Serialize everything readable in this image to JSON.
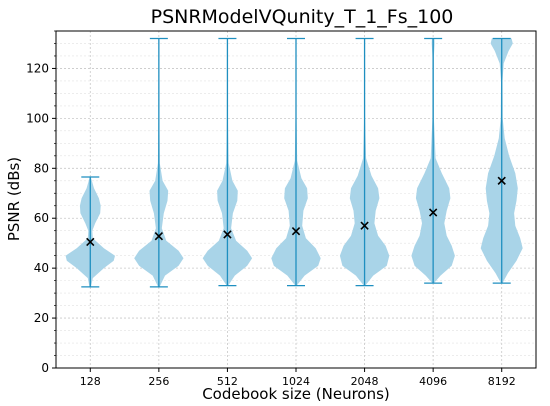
{
  "chart_data": {
    "type": "violin",
    "title": "PSNRModelVQunity_T_1_Fs_100",
    "xlabel": "Codebook size (Neurons)",
    "ylabel": "PSNR (dBs)",
    "ylim": [
      0,
      135
    ],
    "yticks": [
      0,
      20,
      40,
      60,
      80,
      100,
      120
    ],
    "categories": [
      "128",
      "256",
      "512",
      "1024",
      "2048",
      "4096",
      "8192"
    ],
    "grid": true,
    "colors": {
      "body": "#a9d4e8",
      "lines": "#1f8fc0",
      "mean_marker": "#000000"
    },
    "series": [
      {
        "category": "128",
        "min": 32.5,
        "max": 76.5,
        "mean": 50.5,
        "density": [
          [
            32.5,
            0.03
          ],
          [
            36,
            0.1
          ],
          [
            40,
            0.55
          ],
          [
            43,
            0.95
          ],
          [
            45,
            1.0
          ],
          [
            48,
            0.55
          ],
          [
            52,
            0.1
          ],
          [
            55,
            0.08
          ],
          [
            58,
            0.2
          ],
          [
            62,
            0.4
          ],
          [
            65,
            0.42
          ],
          [
            68,
            0.35
          ],
          [
            72,
            0.15
          ],
          [
            76.5,
            0.02
          ]
        ]
      },
      {
        "category": "256",
        "min": 32.5,
        "max": 132.0,
        "mean": 52.8,
        "density": [
          [
            32.5,
            0.03
          ],
          [
            37,
            0.25
          ],
          [
            41,
            0.8
          ],
          [
            44,
            1.0
          ],
          [
            47,
            0.8
          ],
          [
            51,
            0.3
          ],
          [
            56,
            0.12
          ],
          [
            62,
            0.2
          ],
          [
            67,
            0.35
          ],
          [
            71,
            0.38
          ],
          [
            75,
            0.15
          ],
          [
            82,
            0.04
          ],
          [
            100,
            0.02
          ],
          [
            132,
            0.01
          ]
        ]
      },
      {
        "category": "512",
        "min": 33.0,
        "max": 132.0,
        "mean": 53.5,
        "density": [
          [
            33,
            0.03
          ],
          [
            37,
            0.3
          ],
          [
            41,
            0.8
          ],
          [
            44,
            1.0
          ],
          [
            47,
            0.8
          ],
          [
            51,
            0.35
          ],
          [
            56,
            0.15
          ],
          [
            62,
            0.22
          ],
          [
            67,
            0.4
          ],
          [
            71,
            0.42
          ],
          [
            75,
            0.2
          ],
          [
            82,
            0.05
          ],
          [
            100,
            0.02
          ],
          [
            132,
            0.01
          ]
        ]
      },
      {
        "category": "1024",
        "min": 33.0,
        "max": 132.0,
        "mean": 54.8,
        "density": [
          [
            33,
            0.03
          ],
          [
            37,
            0.35
          ],
          [
            41,
            0.9
          ],
          [
            44,
            1.0
          ],
          [
            48,
            0.8
          ],
          [
            52,
            0.4
          ],
          [
            57,
            0.25
          ],
          [
            63,
            0.3
          ],
          [
            68,
            0.48
          ],
          [
            72,
            0.45
          ],
          [
            76,
            0.22
          ],
          [
            83,
            0.05
          ],
          [
            100,
            0.02
          ],
          [
            132,
            0.01
          ]
        ]
      },
      {
        "category": "2048",
        "min": 33.0,
        "max": 132.0,
        "mean": 57.0,
        "density": [
          [
            33,
            0.03
          ],
          [
            37,
            0.35
          ],
          [
            41,
            0.9
          ],
          [
            45,
            1.0
          ],
          [
            49,
            0.85
          ],
          [
            53,
            0.55
          ],
          [
            58,
            0.4
          ],
          [
            63,
            0.45
          ],
          [
            68,
            0.6
          ],
          [
            72,
            0.55
          ],
          [
            77,
            0.28
          ],
          [
            84,
            0.06
          ],
          [
            100,
            0.02
          ],
          [
            132,
            0.01
          ]
        ]
      },
      {
        "category": "4096",
        "min": 34.0,
        "max": 132.0,
        "mean": 62.3,
        "density": [
          [
            34,
            0.03
          ],
          [
            37,
            0.3
          ],
          [
            41,
            0.75
          ],
          [
            45,
            0.88
          ],
          [
            49,
            0.75
          ],
          [
            53,
            0.55
          ],
          [
            58,
            0.45
          ],
          [
            63,
            0.55
          ],
          [
            68,
            0.7
          ],
          [
            72,
            0.65
          ],
          [
            78,
            0.35
          ],
          [
            84,
            0.1
          ],
          [
            100,
            0.03
          ],
          [
            125,
            0.03
          ],
          [
            130,
            0.06
          ],
          [
            132,
            0.05
          ]
        ]
      },
      {
        "category": "8192",
        "min": 34.0,
        "max": 132.0,
        "mean": 75.0,
        "density": [
          [
            34,
            0.03
          ],
          [
            38,
            0.25
          ],
          [
            43,
            0.6
          ],
          [
            48,
            0.85
          ],
          [
            52,
            0.75
          ],
          [
            57,
            0.55
          ],
          [
            62,
            0.5
          ],
          [
            67,
            0.6
          ],
          [
            72,
            0.65
          ],
          [
            78,
            0.55
          ],
          [
            85,
            0.3
          ],
          [
            92,
            0.12
          ],
          [
            100,
            0.04
          ],
          [
            115,
            0.03
          ],
          [
            122,
            0.08
          ],
          [
            127,
            0.28
          ],
          [
            130,
            0.45
          ],
          [
            132,
            0.4
          ]
        ]
      }
    ]
  }
}
